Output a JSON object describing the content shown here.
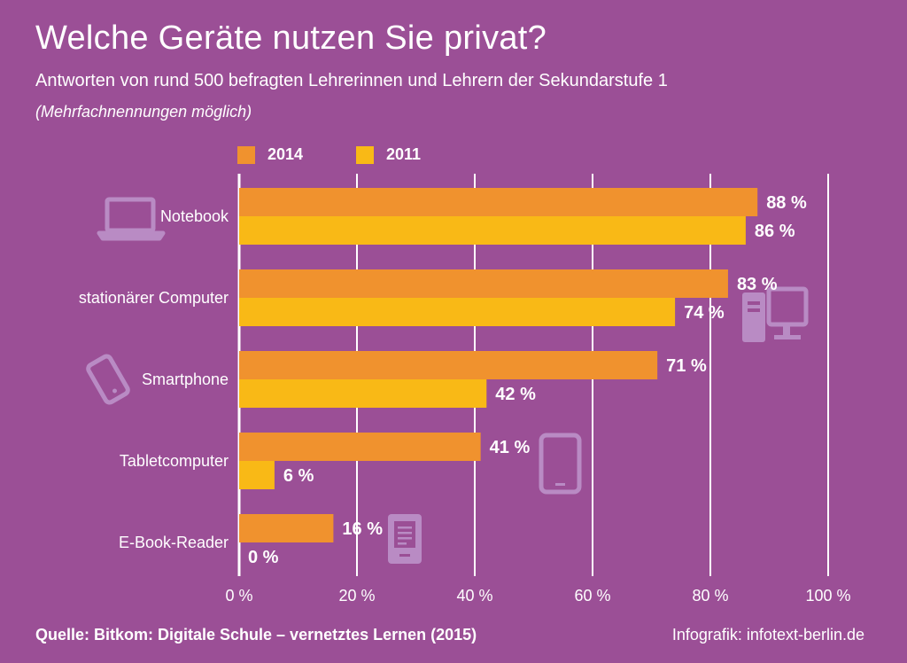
{
  "header": {
    "title": "Welche Geräte nutzen Sie privat?",
    "subtitle": "Antworten von rund 500 befragten Lehrerinnen und Lehrern der Sekundarstufe 1",
    "note": "(Mehrfachnennungen möglich)"
  },
  "footer": {
    "source": "Quelle: Bitkom: Digitale Schule – vernetztes Lernen (2015)",
    "credit": "Infografik: infotext-berlin.de"
  },
  "colors": {
    "background": "#9b4f96",
    "series_2014": "#f0922e",
    "series_2011": "#f9b916",
    "icon": "#b98bc4"
  },
  "icons": [
    "laptop-icon",
    "desktop-computer-icon",
    "smartphone-icon",
    "tablet-icon",
    "ebook-reader-icon"
  ],
  "chart_data": {
    "type": "bar",
    "orientation": "horizontal",
    "categories": [
      "Notebook",
      "stationärer Computer",
      "Smartphone",
      "Tabletcomputer",
      "E-Book-Reader"
    ],
    "series": [
      {
        "name": "2014",
        "values": [
          88,
          83,
          71,
          41,
          16
        ],
        "labels": [
          "88 %",
          "83 %",
          "71 %",
          "41 %",
          "16 %"
        ]
      },
      {
        "name": "2011",
        "values": [
          86,
          74,
          42,
          6,
          0
        ],
        "labels": [
          "86 %",
          "74 %",
          "42 %",
          "6 %",
          "0 %"
        ]
      }
    ],
    "xlim": [
      0,
      100
    ],
    "ticks": [
      "0 %",
      "20 %",
      "40 %",
      "60 %",
      "80 %",
      "100 %"
    ],
    "grid": true,
    "legend": "top-left"
  }
}
